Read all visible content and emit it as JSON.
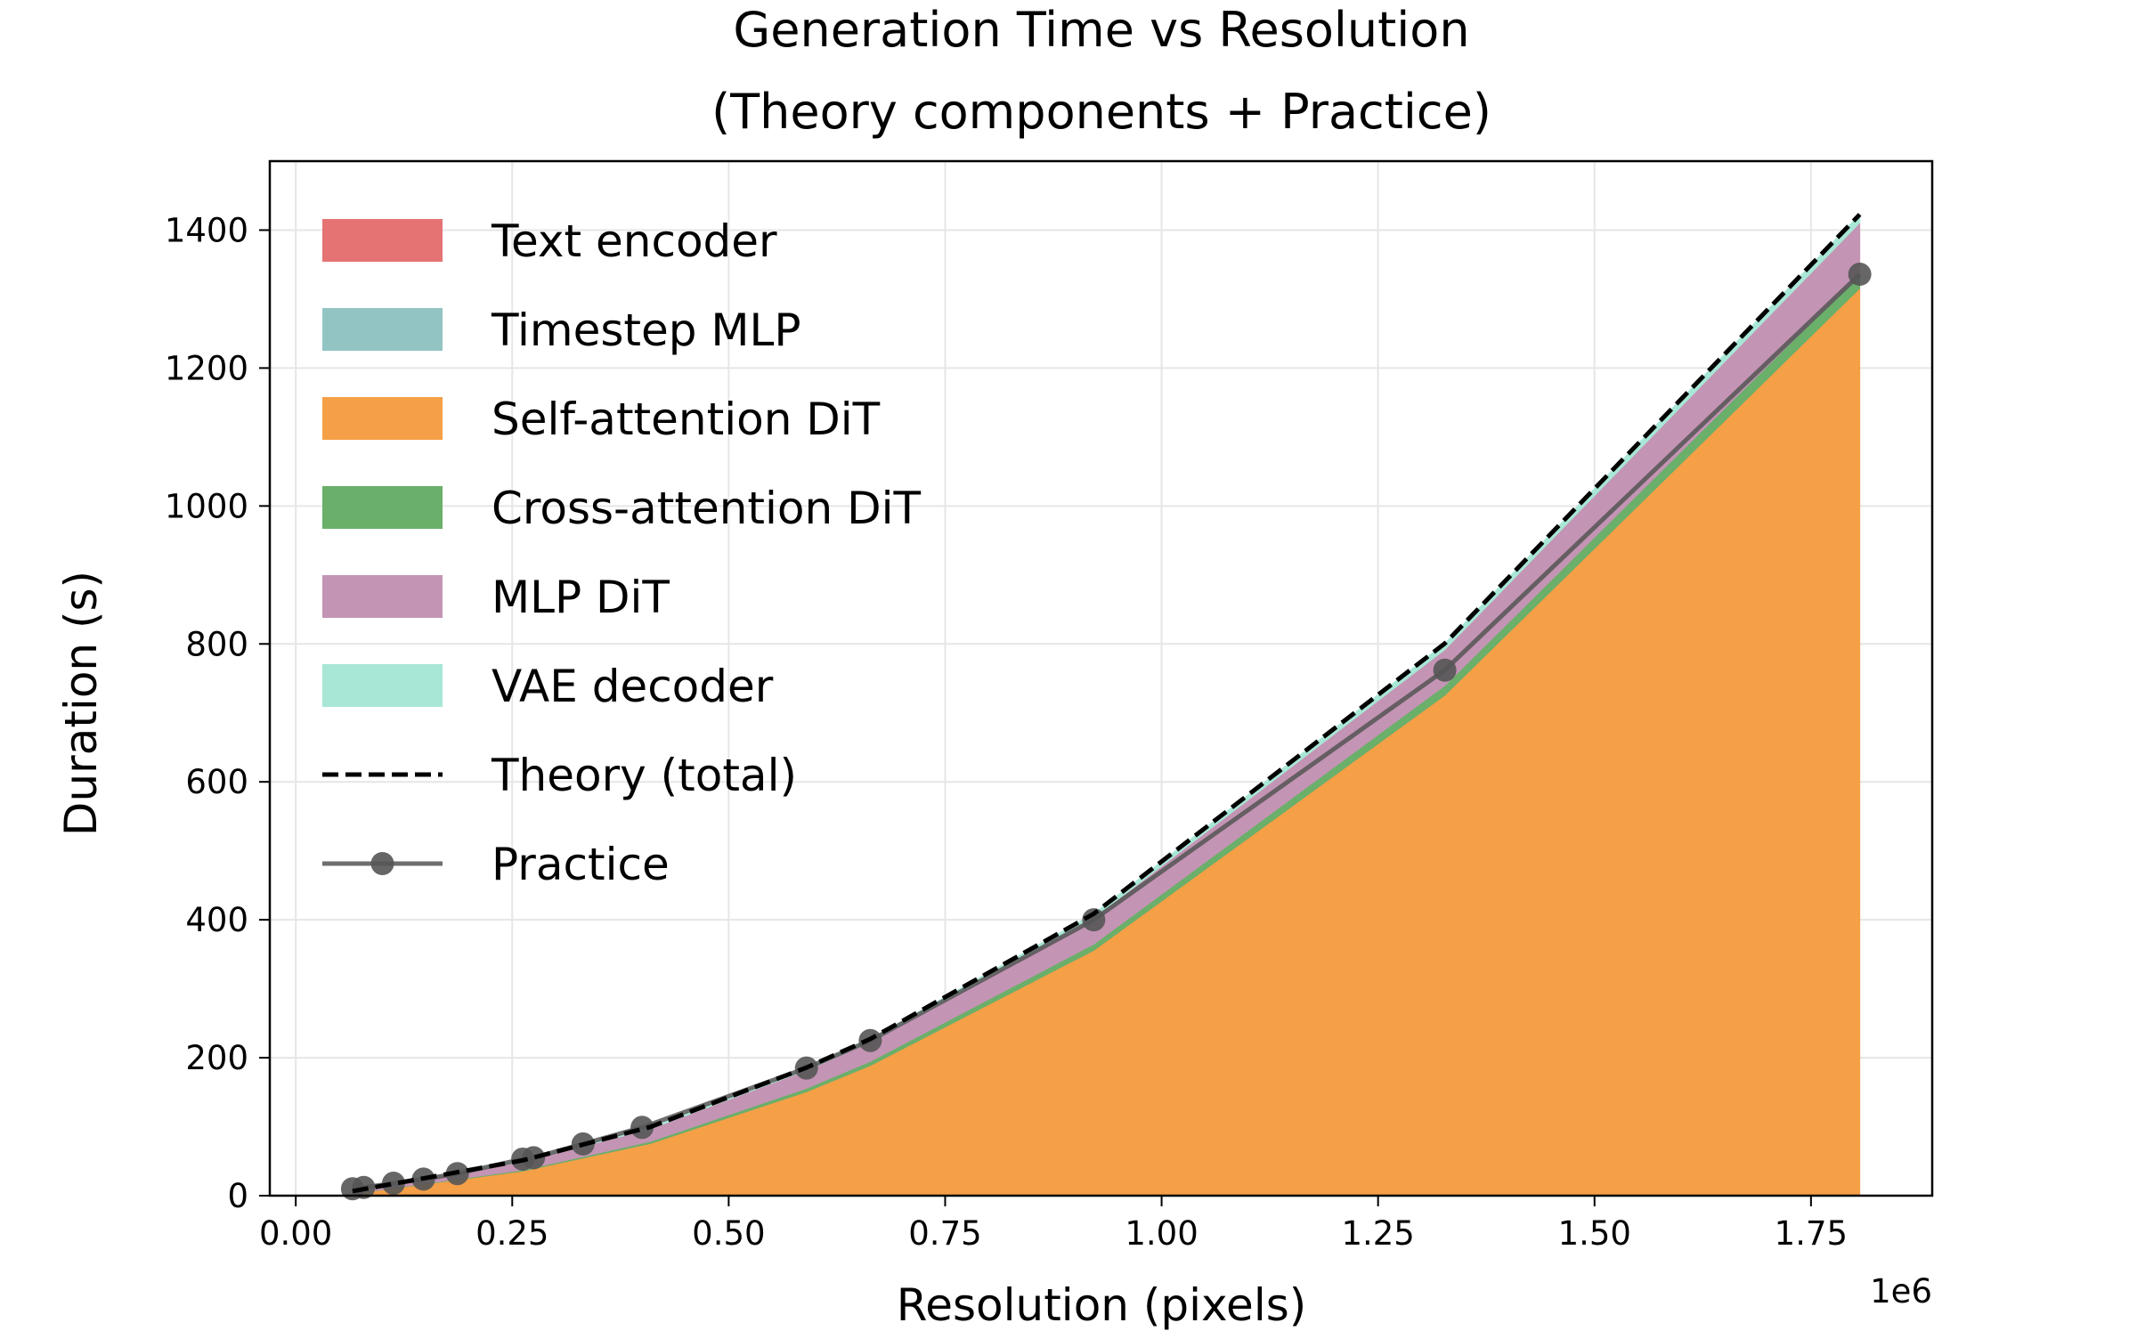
{
  "chart_data": {
    "type": "area",
    "title_line1": "Generation Time vs Resolution",
    "title_line2": "(Theory components + Practice)",
    "xlabel": "Resolution (pixels)",
    "ylabel": "Duration (s)",
    "x_multiplier_label": "1e6",
    "xlim": [
      -30000,
      1890000
    ],
    "ylim": [
      0,
      1500
    ],
    "x_ticks": [
      0,
      250000,
      500000,
      750000,
      1000000,
      1250000,
      1500000,
      1750000
    ],
    "x_tick_labels": [
      "0.00",
      "0.25",
      "0.50",
      "0.75",
      "1.00",
      "1.25",
      "1.50",
      "1.75"
    ],
    "y_ticks": [
      0,
      200,
      400,
      600,
      800,
      1000,
      1200,
      1400
    ],
    "y_tick_labels": [
      "0",
      "200",
      "400",
      "600",
      "800",
      "1000",
      "1200",
      "1400"
    ],
    "grid": true,
    "legend_position": "upper-left",
    "theory_x": [
      65536,
      262144,
      409600,
      589824,
      663552,
      921600,
      1327104,
      1806336
    ],
    "stacked_series": [
      {
        "name": "Text encoder",
        "color": "#e57373",
        "values": [
          0.5,
          0.5,
          0.5,
          0.5,
          0.5,
          0.5,
          0.5,
          0.5
        ]
      },
      {
        "name": "Timestep MLP",
        "color": "#93c4c4",
        "values": [
          0.2,
          0.2,
          0.2,
          0.2,
          0.2,
          0.2,
          0.2,
          0.2
        ]
      },
      {
        "name": "Self-attention DiT",
        "color": "#f59f47",
        "values": [
          2,
          35,
          75,
          150,
          188,
          355,
          725,
          1315
        ]
      },
      {
        "name": "Cross-attention DiT",
        "color": "#6aaf6a",
        "values": [
          0.3,
          1.5,
          3,
          5,
          6,
          9,
          14,
          20
        ]
      },
      {
        "name": "MLP DiT",
        "color": "#c494b4",
        "values": [
          3,
          12,
          18,
          26,
          28,
          38,
          52,
          75
        ]
      },
      {
        "name": "VAE decoder",
        "color": "#a8e6d6",
        "values": [
          0.5,
          2,
          3,
          4,
          4.5,
          6,
          9,
          12
        ]
      }
    ],
    "theory_total": {
      "name": "Theory (total)",
      "color": "#000000",
      "values": [
        6.5,
        51.2,
        99.7,
        185.7,
        227.2,
        408.7,
        800.7,
        1422.7
      ]
    },
    "practice": {
      "name": "Practice",
      "color": "#555555",
      "x": [
        65536,
        78400,
        112896,
        147456,
        186624,
        262144,
        274576,
        331776,
        400000,
        589824,
        663552,
        921600,
        1327104,
        1806336
      ],
      "values": [
        10,
        12,
        18,
        24,
        32,
        53,
        55,
        75,
        99,
        185,
        225,
        400,
        762,
        1336
      ]
    }
  }
}
